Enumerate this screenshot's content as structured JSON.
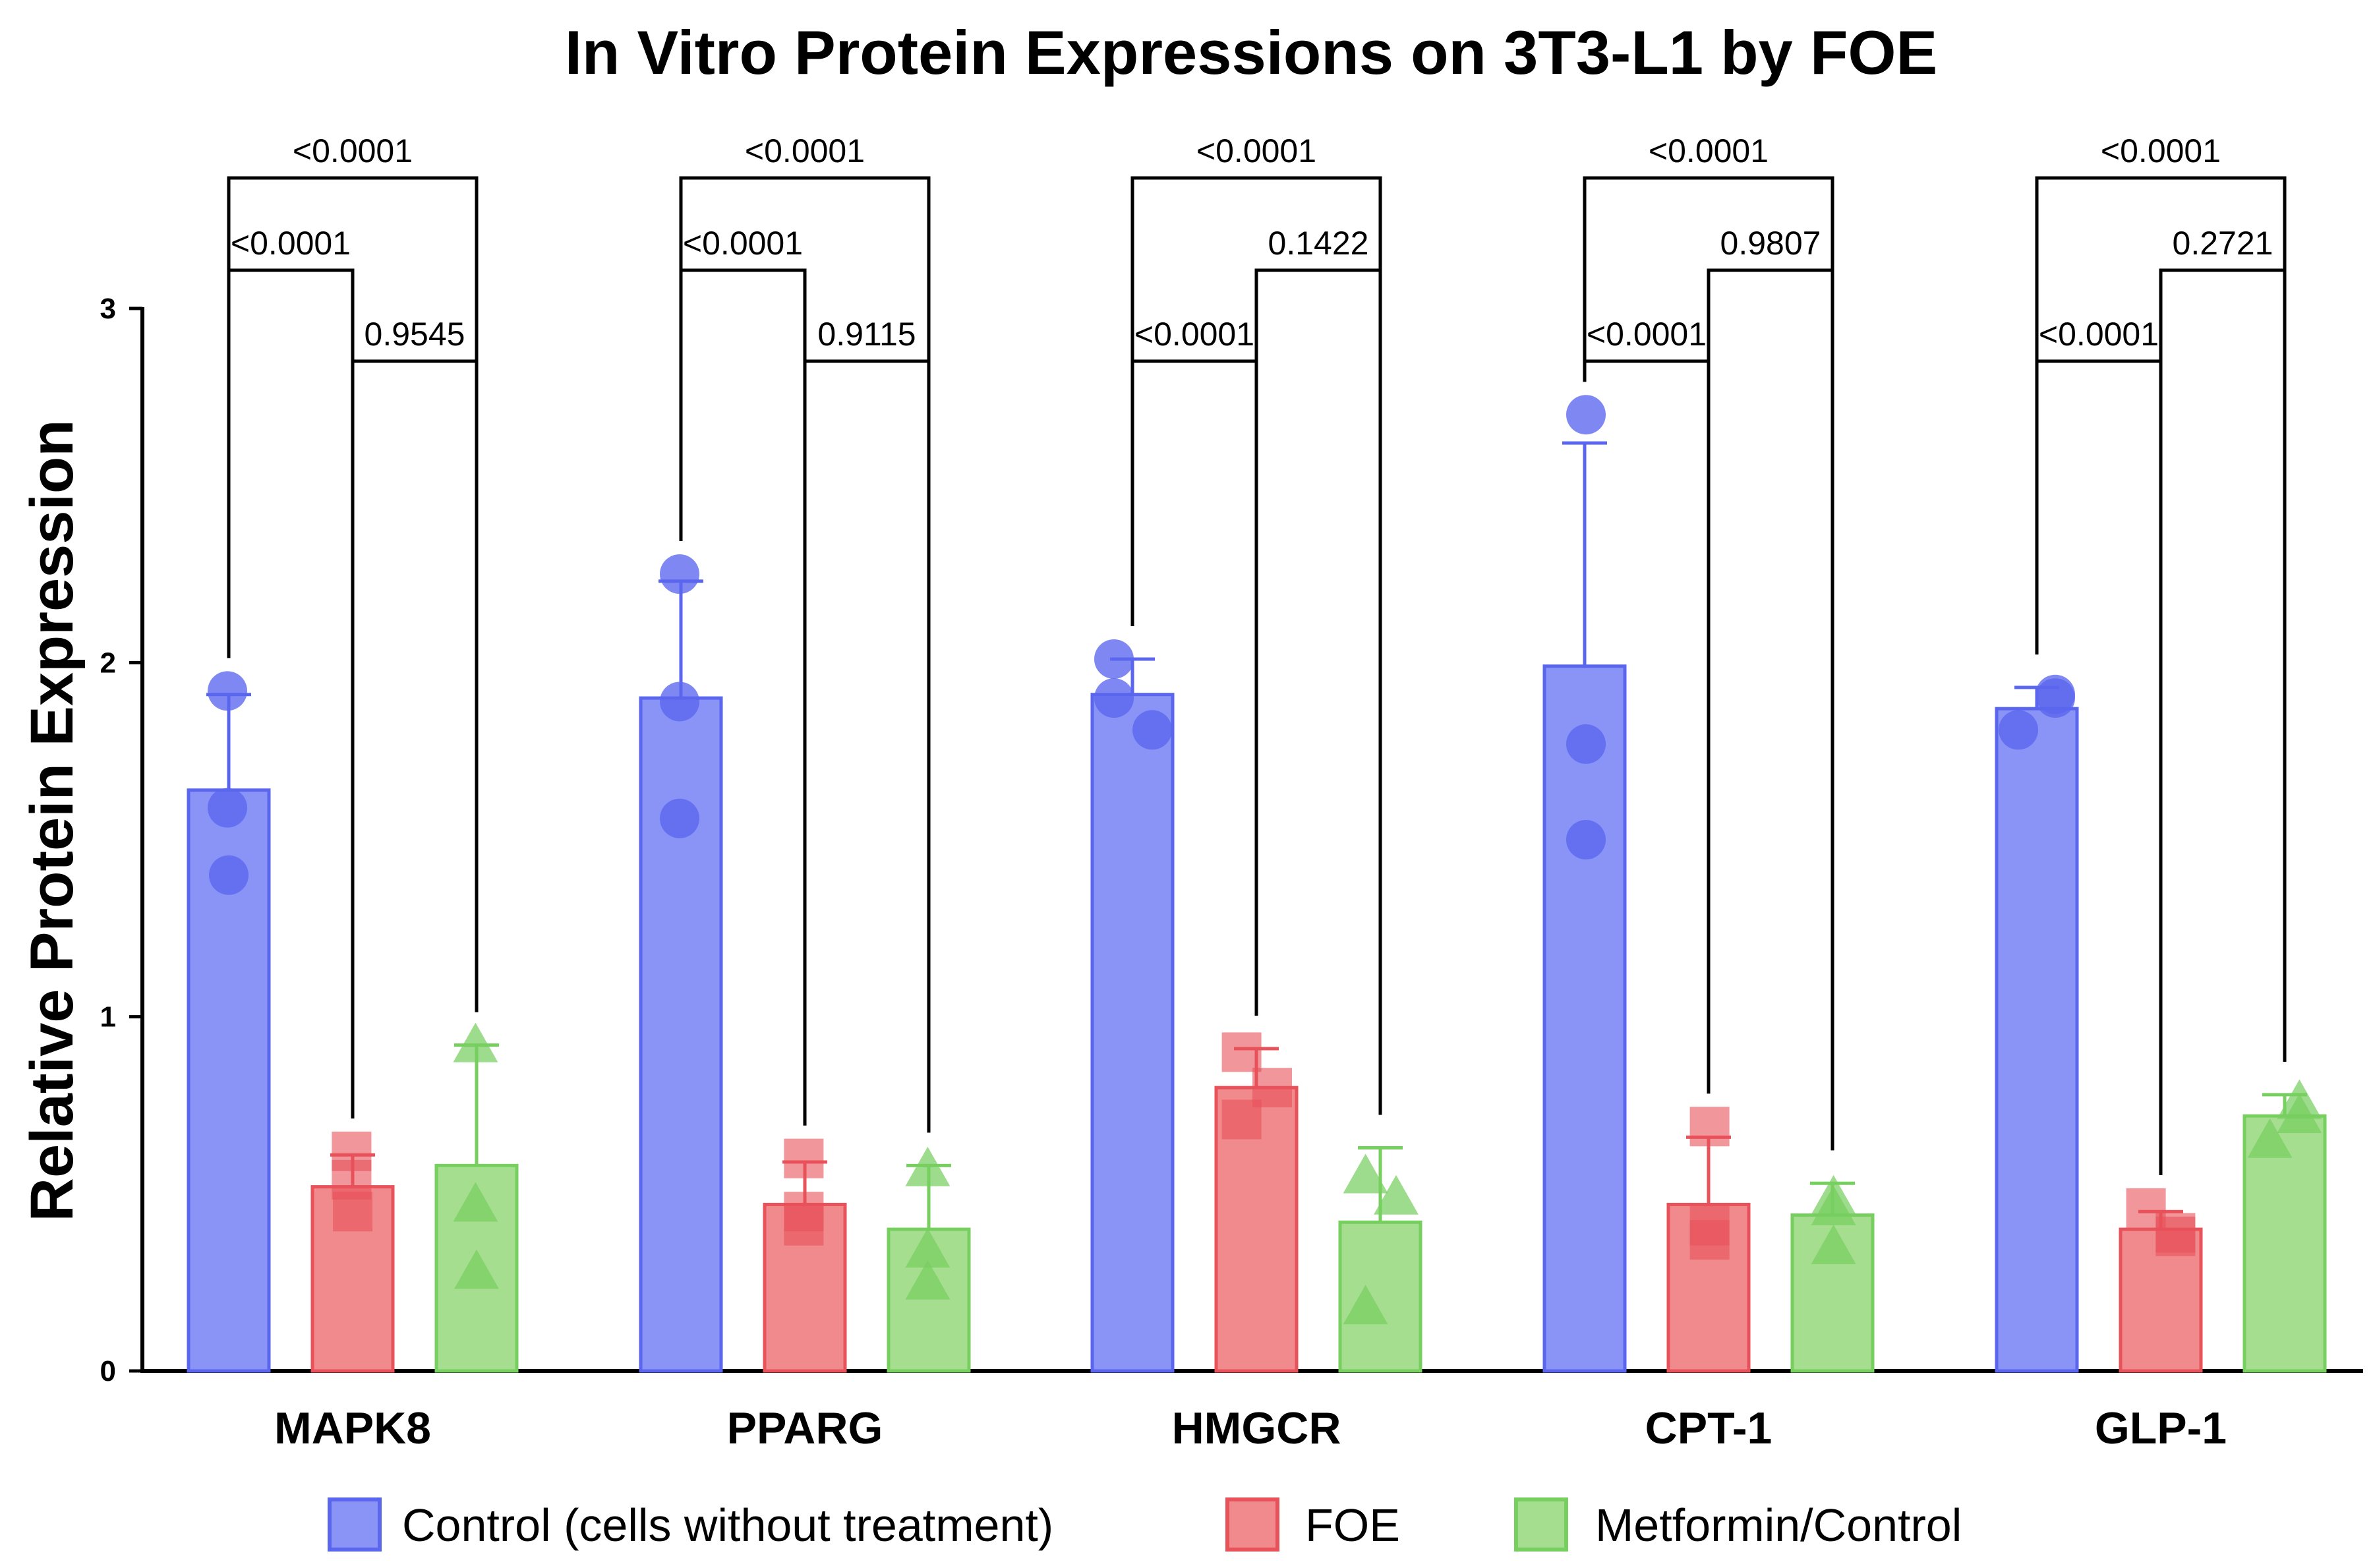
{
  "chart_data": {
    "type": "bar",
    "title": "In Vitro Protein Expressions on 3T3-L1 by FOE",
    "xlabel": "",
    "ylabel": "Relative Protein Expression",
    "ylim": [
      0,
      3
    ],
    "yticks": [
      "0",
      "1",
      "2",
      "3"
    ],
    "categories": [
      "MAPK8",
      "PPARG",
      "HMGCR",
      "CPT-1",
      "GLP-1"
    ],
    "series": [
      {
        "name": "Control (cells without treatment)",
        "marker": "circle",
        "color": "#8a93f6",
        "edge": "#5b66ee",
        "values": [
          1.64,
          1.9,
          1.91,
          1.99,
          1.87
        ],
        "error": [
          0.27,
          0.33,
          0.1,
          0.63,
          0.06
        ],
        "points": [
          [
            1.92,
            1.59,
            1.4
          ],
          [
            2.25,
            1.89,
            1.56
          ],
          [
            2.01,
            1.81,
            1.9
          ],
          [
            2.7,
            1.77,
            1.5
          ],
          [
            1.81,
            1.91,
            1.9
          ]
        ]
      },
      {
        "name": "FOE",
        "marker": "square",
        "color": "#f08a8d",
        "edge": "#e8525a",
        "values": [
          0.52,
          0.47,
          0.8,
          0.47,
          0.4
        ],
        "error": [
          0.09,
          0.12,
          0.11,
          0.19,
          0.05
        ],
        "points": [
          [
            0.62,
            0.54,
            0.45
          ],
          [
            0.6,
            0.45,
            0.41
          ],
          [
            0.9,
            0.8,
            0.71
          ],
          [
            0.69,
            0.41,
            0.37
          ],
          [
            0.46,
            0.38,
            0.39
          ]
        ]
      },
      {
        "name": "Metformin/Control",
        "marker": "triangle",
        "color": "#a6de90",
        "edge": "#77cf5f",
        "values": [
          0.58,
          0.4,
          0.42,
          0.44,
          0.72
        ],
        "error": [
          0.34,
          0.18,
          0.21,
          0.09,
          0.06
        ],
        "points": [
          [
            0.92,
            0.47,
            0.28
          ],
          [
            0.57,
            0.34,
            0.25
          ],
          [
            0.55,
            0.49,
            0.18
          ],
          [
            0.49,
            0.46,
            0.35
          ],
          [
            0.65,
            0.72,
            0.76
          ]
        ]
      }
    ],
    "comparisons": [
      {
        "top": "<0.0001",
        "middle": "<0.0001",
        "bottom": "0.9545"
      },
      {
        "top": "<0.0001",
        "middle": "<0.0001",
        "bottom": "0.9115"
      },
      {
        "top": "<0.0001",
        "middle": "0.1422",
        "bottom": "<0.0001"
      },
      {
        "top": "<0.0001",
        "middle": "0.9807",
        "bottom": "<0.0001"
      },
      {
        "top": "<0.0001",
        "middle": "0.2721",
        "bottom": "<0.0001"
      }
    ],
    "legend": [
      "Control (cells without treatment)",
      "FOE",
      "Metformin/Control"
    ]
  }
}
